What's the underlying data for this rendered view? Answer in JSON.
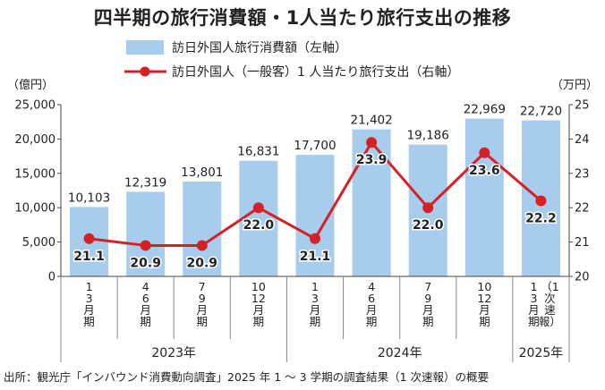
{
  "title": "四半期の旅行消費額・1人当たり旅行支出の推移",
  "source": "出所：観光庁「インバウンド消費動向調査」2025 年 1 ～ 3 学期の調査結果（1 次速報）の概要",
  "colors": {
    "bar": "#a8ccec",
    "line": "#d71f26",
    "axis": "#444444",
    "grid": "#888888"
  },
  "chart_data": {
    "type": "bar+line",
    "categories": [
      "1\n3\n月\n期",
      "4\n6\n月\n期",
      "7\n9\n月\n期",
      "10\n12\n月\n期",
      "1\n3\n月\n期",
      "4\n6\n月\n期",
      "7\n9\n月\n期",
      "10\n12\n月\n期",
      "1\n3\n月\n期\n（1\n次\n速\n報）"
    ],
    "year_groups": [
      {
        "label": "2023年",
        "from": 0,
        "to": 3
      },
      {
        "label": "2024年",
        "from": 4,
        "to": 7
      },
      {
        "label": "2025年",
        "from": 8,
        "to": 8
      }
    ],
    "series": [
      {
        "name": "訪日外国人旅行消費額（左軸）",
        "type": "bar",
        "axis": "left",
        "values": [
          10103,
          12319,
          13801,
          16831,
          17700,
          21402,
          19186,
          22969,
          22720
        ],
        "labels": [
          "10,103",
          "12,319",
          "13,801",
          "16,831",
          "17,700",
          "21,402",
          "19,186",
          "22,969",
          "22,720"
        ]
      },
      {
        "name": "訪日外国人（一般客）1 人当たり旅行支出（右軸）",
        "type": "line",
        "axis": "right",
        "values": [
          21.1,
          20.9,
          20.9,
          22.0,
          21.1,
          23.9,
          22.0,
          23.6,
          22.2
        ],
        "labels": [
          "21.1",
          "20.9",
          "20.9",
          "22.0",
          "21.1",
          "23.9",
          "22.0",
          "23.6",
          "22.2"
        ]
      }
    ],
    "left_axis": {
      "unit": "（億円）",
      "min": 0,
      "max": 25000,
      "ticks": [
        0,
        5000,
        10000,
        15000,
        20000,
        25000
      ],
      "tick_labels": [
        "0",
        "5,000",
        "10,000",
        "15,000",
        "20,000",
        "25,000"
      ]
    },
    "right_axis": {
      "unit": "（万円）",
      "min": 20,
      "max": 25,
      "ticks": [
        20,
        21,
        22,
        23,
        24,
        25
      ],
      "tick_labels": [
        "20",
        "21",
        "22",
        "23",
        "24",
        "25"
      ]
    },
    "legend_position": "top",
    "grid": false
  }
}
